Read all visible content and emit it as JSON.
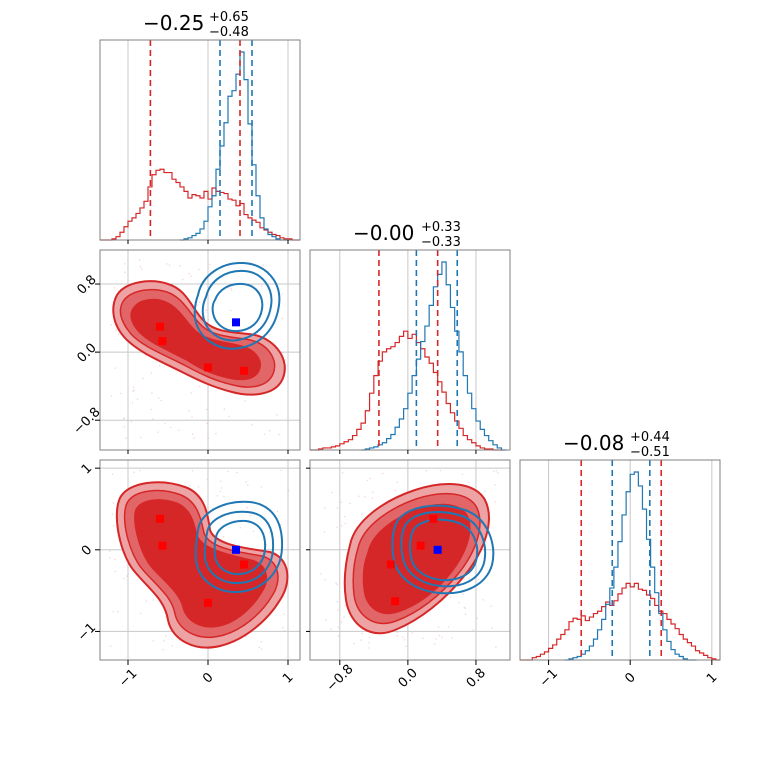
{
  "chart_data": {
    "type": "corner",
    "colors": {
      "red": "#d62728",
      "blue": "#1f77b4",
      "red_light": "#eda3a4",
      "red_mid": "#e26668",
      "red_pt": "#ff0000",
      "blue_pt": "#0000ff",
      "grid": "#c8c8c8",
      "frame": "#808080"
    },
    "grid": true,
    "titles": [
      {
        "value": "−0.25",
        "upper": "+0.65",
        "lower": "−0.48"
      },
      {
        "value": "−0.00",
        "upper": "+0.33",
        "lower": "−0.33"
      },
      {
        "value": "−0.08",
        "upper": "+0.44",
        "lower": "−0.51"
      }
    ],
    "axes": [
      {
        "range": [
          -1.35,
          1.15
        ],
        "ticks": [
          -1,
          0,
          1
        ],
        "tick_labels": [
          "−1",
          "0",
          "1"
        ]
      },
      {
        "range": [
          -1.15,
          1.2
        ],
        "ticks": [
          -0.8,
          0.0,
          0.8
        ],
        "tick_labels": [
          "−0.8",
          "0.0",
          "0.8"
        ]
      },
      {
        "range": [
          -1.35,
          1.1
        ],
        "ticks": [
          -1,
          0,
          1
        ],
        "tick_labels": [
          "−1",
          "0",
          "1"
        ]
      }
    ],
    "quantiles": {
      "red": [
        [
          -0.72,
          0.4
        ],
        [
          -0.34,
          0.35
        ],
        [
          -0.6,
          0.38
        ]
      ],
      "blue": [
        [
          0.15,
          0.55
        ],
        [
          0.1,
          0.58
        ],
        [
          -0.22,
          0.24
        ]
      ]
    },
    "marginals": [
      {
        "red_x": [
          -1.35,
          -1.25,
          -1.2,
          -1.15,
          -1.1,
          -1.05,
          -1.0,
          -0.95,
          -0.9,
          -0.85,
          -0.8,
          -0.75,
          -0.7,
          -0.65,
          -0.6,
          -0.55,
          -0.5,
          -0.45,
          -0.4,
          -0.35,
          -0.3,
          -0.25,
          -0.2,
          -0.15,
          -0.1,
          -0.05,
          0.0,
          0.05,
          0.1,
          0.15,
          0.2,
          0.25,
          0.3,
          0.35,
          0.4,
          0.45,
          0.5,
          0.55,
          0.6,
          0.65,
          0.7,
          0.75,
          0.8,
          0.85,
          0.9,
          0.95,
          1.0,
          1.05,
          1.1
        ],
        "red_y": [
          0,
          0,
          1,
          3,
          7,
          12,
          17,
          20,
          24,
          29,
          35,
          48,
          59,
          63,
          64,
          61,
          61,
          55,
          52,
          48,
          44,
          38,
          41,
          40,
          38,
          44,
          37,
          47,
          44,
          43,
          42,
          37,
          36,
          31,
          33,
          23,
          20,
          18,
          16,
          11,
          9,
          7,
          5,
          4,
          2,
          1,
          1,
          0,
          0
        ],
        "blue_x": [
          -0.35,
          -0.3,
          -0.25,
          -0.2,
          -0.15,
          -0.1,
          -0.05,
          0.0,
          0.05,
          0.1,
          0.15,
          0.2,
          0.25,
          0.3,
          0.35,
          0.4,
          0.45,
          0.5,
          0.55,
          0.6,
          0.65,
          0.7,
          0.75,
          0.8,
          0.85,
          0.9,
          0.95
        ],
        "blue_y": [
          0,
          1,
          2,
          4,
          6,
          10,
          17,
          30,
          40,
          64,
          85,
          106,
          130,
          135,
          150,
          170,
          145,
          105,
          68,
          40,
          20,
          10,
          5,
          3,
          1,
          0,
          0
        ]
      },
      {
        "red_x": [
          -1.15,
          -1.05,
          -1.0,
          -0.95,
          -0.9,
          -0.85,
          -0.8,
          -0.75,
          -0.7,
          -0.65,
          -0.6,
          -0.55,
          -0.5,
          -0.45,
          -0.4,
          -0.35,
          -0.3,
          -0.25,
          -0.2,
          -0.15,
          -0.1,
          -0.05,
          0.0,
          0.05,
          0.1,
          0.15,
          0.2,
          0.25,
          0.3,
          0.35,
          0.4,
          0.45,
          0.5,
          0.55,
          0.6,
          0.65,
          0.7,
          0.75,
          0.8,
          0.85,
          0.9,
          0.95,
          1.0,
          1.05
        ],
        "red_y": [
          0,
          1,
          2,
          2,
          3,
          4,
          6,
          8,
          10,
          14,
          20,
          26,
          38,
          55,
          72,
          86,
          95,
          98,
          100,
          104,
          110,
          115,
          108,
          112,
          104,
          98,
          90,
          84,
          75,
          66,
          56,
          45,
          36,
          28,
          21,
          14,
          10,
          7,
          4,
          2,
          1,
          1,
          0,
          0
        ],
        "blue_x": [
          -0.55,
          -0.5,
          -0.45,
          -0.4,
          -0.35,
          -0.3,
          -0.25,
          -0.2,
          -0.15,
          -0.1,
          -0.05,
          0.0,
          0.05,
          0.1,
          0.15,
          0.2,
          0.25,
          0.3,
          0.35,
          0.4,
          0.45,
          0.5,
          0.55,
          0.6,
          0.65,
          0.7,
          0.75,
          0.8,
          0.85,
          0.9,
          0.95,
          1.0,
          1.05,
          1.1
        ],
        "blue_y": [
          0,
          1,
          2,
          3,
          5,
          7,
          11,
          15,
          22,
          30,
          40,
          55,
          72,
          88,
          105,
          120,
          140,
          158,
          170,
          182,
          160,
          138,
          115,
          95,
          72,
          55,
          40,
          28,
          20,
          14,
          9,
          5,
          2,
          0
        ]
      },
      {
        "red_x": [
          -1.35,
          -1.2,
          -1.15,
          -1.1,
          -1.05,
          -1.0,
          -0.95,
          -0.9,
          -0.85,
          -0.8,
          -0.75,
          -0.7,
          -0.65,
          -0.6,
          -0.55,
          -0.5,
          -0.45,
          -0.4,
          -0.35,
          -0.3,
          -0.25,
          -0.2,
          -0.15,
          -0.1,
          -0.05,
          0.0,
          0.05,
          0.1,
          0.15,
          0.2,
          0.25,
          0.3,
          0.35,
          0.4,
          0.45,
          0.5,
          0.55,
          0.6,
          0.65,
          0.7,
          0.75,
          0.8,
          0.85,
          0.9,
          0.95,
          1.0,
          1.05
        ],
        "red_y": [
          0,
          2,
          3,
          5,
          7,
          10,
          13,
          18,
          22,
          26,
          33,
          36,
          35,
          38,
          34,
          37,
          40,
          42,
          46,
          50,
          47,
          51,
          57,
          62,
          66,
          63,
          66,
          61,
          60,
          56,
          53,
          47,
          42,
          40,
          35,
          31,
          27,
          22,
          18,
          15,
          12,
          8,
          6,
          4,
          2,
          1,
          0
        ],
        "blue_x": [
          -0.8,
          -0.75,
          -0.7,
          -0.65,
          -0.6,
          -0.55,
          -0.5,
          -0.45,
          -0.4,
          -0.35,
          -0.3,
          -0.25,
          -0.2,
          -0.15,
          -0.1,
          -0.05,
          0.0,
          0.05,
          0.1,
          0.15,
          0.2,
          0.25,
          0.3,
          0.35,
          0.4,
          0.45,
          0.5,
          0.55,
          0.6,
          0.65,
          0.7,
          0.75
        ],
        "blue_y": [
          0,
          1,
          2,
          3,
          5,
          8,
          12,
          18,
          26,
          35,
          48,
          62,
          80,
          102,
          125,
          145,
          160,
          162,
          150,
          130,
          104,
          80,
          58,
          40,
          26,
          16,
          9,
          5,
          3,
          1,
          0,
          0
        ]
      }
    ],
    "points": {
      "p10": {
        "red": [
          [
            -0.6,
            0.3
          ],
          [
            -0.57,
            0.13
          ],
          [
            0.0,
            -0.18
          ],
          [
            0.45,
            -0.22
          ]
        ],
        "blue": [
          [
            0.35,
            0.35
          ]
        ]
      },
      "p20": {
        "red": [
          [
            -0.6,
            0.38
          ],
          [
            -0.57,
            0.05
          ],
          [
            0.0,
            -0.65
          ],
          [
            0.45,
            -0.18
          ]
        ],
        "blue": [
          [
            0.35,
            0.0
          ]
        ]
      },
      "p21": {
        "red": [
          [
            -0.2,
            -0.18
          ],
          [
            0.15,
            0.05
          ],
          [
            0.3,
            0.38
          ],
          [
            -0.15,
            -0.63
          ]
        ],
        "blue": [
          [
            0.35,
            0.0
          ]
        ]
      }
    }
  }
}
